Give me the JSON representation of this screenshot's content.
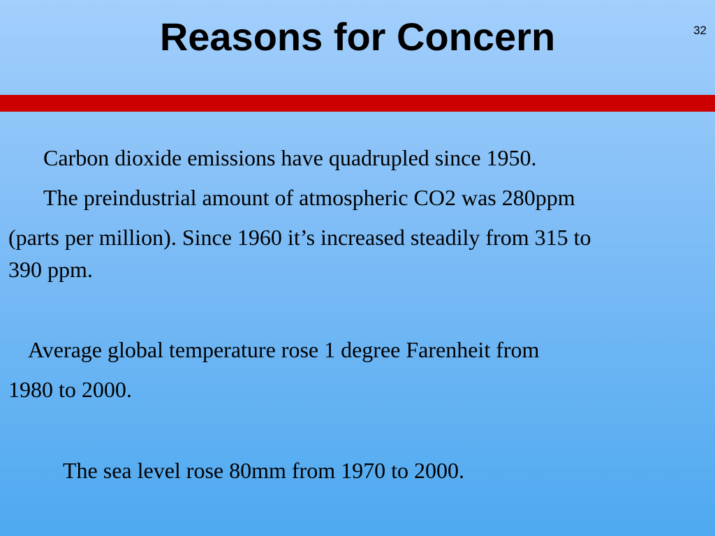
{
  "slide": {
    "title": "Reasons for Concern",
    "number": 32,
    "paragraphs": [
      {
        "lines": [
          "Carbon dioxide emissions have quadrupled since 1950."
        ]
      },
      {
        "lines": [
          "The preindustrial amount of atmospheric CO2 was 280ppm",
          "(parts per million). Since 1960 it’s increased steadily from 315 to",
          "390 ppm."
        ]
      },
      {
        "lines": [
          "Average global temperature rose 1 degree Farenheit from",
          "1980 to 2000."
        ]
      },
      {
        "lines": [
          "The sea level rose 80mm from 1970 to 2000."
        ]
      }
    ]
  }
}
